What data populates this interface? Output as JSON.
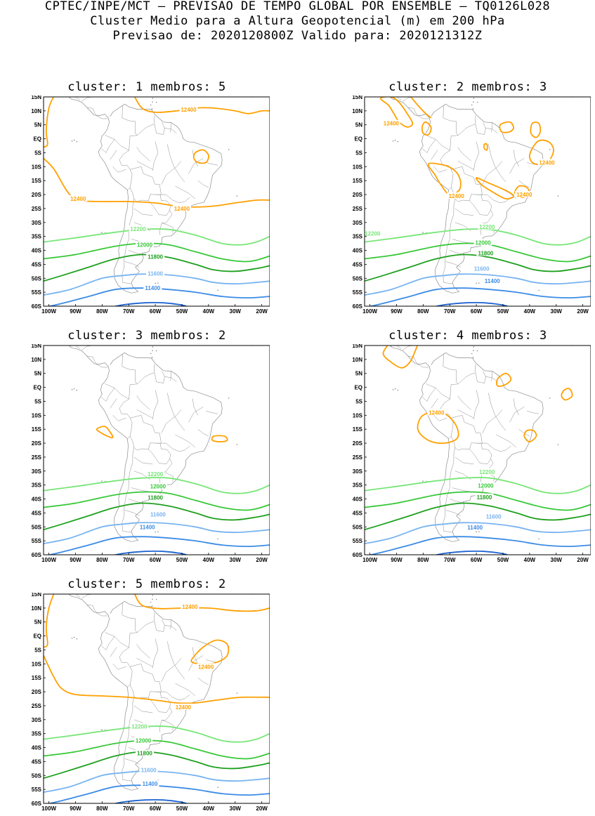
{
  "header": {
    "line1": "CPTEC/INPE/MCT – PREVISAO DE TEMPO GLOBAL POR ENSEMBLE – TQ0126L028",
    "line2": "Cluster Medio para a Altura Geopotencial (m) em 200 hPa",
    "line3": "Previsao de: 2020120800Z    Valido para: 2020121312Z"
  },
  "axes": {
    "lat_labels": [
      "15N",
      "10N",
      "5N",
      "EQ",
      "5S",
      "10S",
      "15S",
      "20S",
      "25S",
      "30S",
      "35S",
      "40S",
      "45S",
      "50S",
      "55S",
      "60S"
    ],
    "lon_labels": [
      "100W",
      "90W",
      "80W",
      "70W",
      "60W",
      "50W",
      "40W",
      "30W",
      "20W"
    ]
  },
  "colors": {
    "c12400": "#ffa000",
    "c12200": "#78e678",
    "c12000": "#37c837",
    "c11800": "#1ea01e",
    "c11600": "#78b4f0",
    "c11400": "#3c8ce6",
    "c11200": "#1e64d2",
    "coast": "#8c8c8c"
  },
  "panels": [
    {
      "title": "cluster: 1   membros: 5",
      "contours": [
        {
          "value": "12400",
          "show_label": true
        },
        {
          "value": "12200",
          "show_label": true
        },
        {
          "value": "12000",
          "show_label": true
        },
        {
          "value": "11800",
          "show_label": true
        },
        {
          "value": "11600",
          "show_label": true
        },
        {
          "value": "11400",
          "show_label": true
        }
      ]
    },
    {
      "title": "cluster: 2   membros: 3",
      "contours": [
        {
          "value": "12400",
          "show_label": true
        },
        {
          "value": "12200",
          "show_label": true
        },
        {
          "value": "12000",
          "show_label": true
        },
        {
          "value": "11800",
          "show_label": true
        },
        {
          "value": "11600",
          "show_label": true
        },
        {
          "value": "11400",
          "show_label": true
        }
      ]
    },
    {
      "title": "cluster: 3   membros: 2",
      "contours": [
        {
          "value": "12200",
          "show_label": true
        },
        {
          "value": "12000",
          "show_label": true
        },
        {
          "value": "11800",
          "show_label": true
        },
        {
          "value": "11600",
          "show_label": true
        },
        {
          "value": "11400",
          "show_label": true
        }
      ]
    },
    {
      "title": "cluster: 4   membros: 3",
      "contours": [
        {
          "value": "12400",
          "show_label": true
        },
        {
          "value": "12200",
          "show_label": true
        },
        {
          "value": "12000",
          "show_label": true
        },
        {
          "value": "11800",
          "show_label": true
        },
        {
          "value": "11600",
          "show_label": true
        },
        {
          "value": "11400",
          "show_label": true
        }
      ]
    },
    {
      "title": "cluster: 5   membros: 2",
      "contours": [
        {
          "value": "12400",
          "show_label": true
        },
        {
          "value": "12200",
          "show_label": true
        },
        {
          "value": "12000",
          "show_label": true
        },
        {
          "value": "11800",
          "show_label": true
        },
        {
          "value": "11600",
          "show_label": true
        },
        {
          "value": "11400",
          "show_label": true
        }
      ]
    }
  ]
}
